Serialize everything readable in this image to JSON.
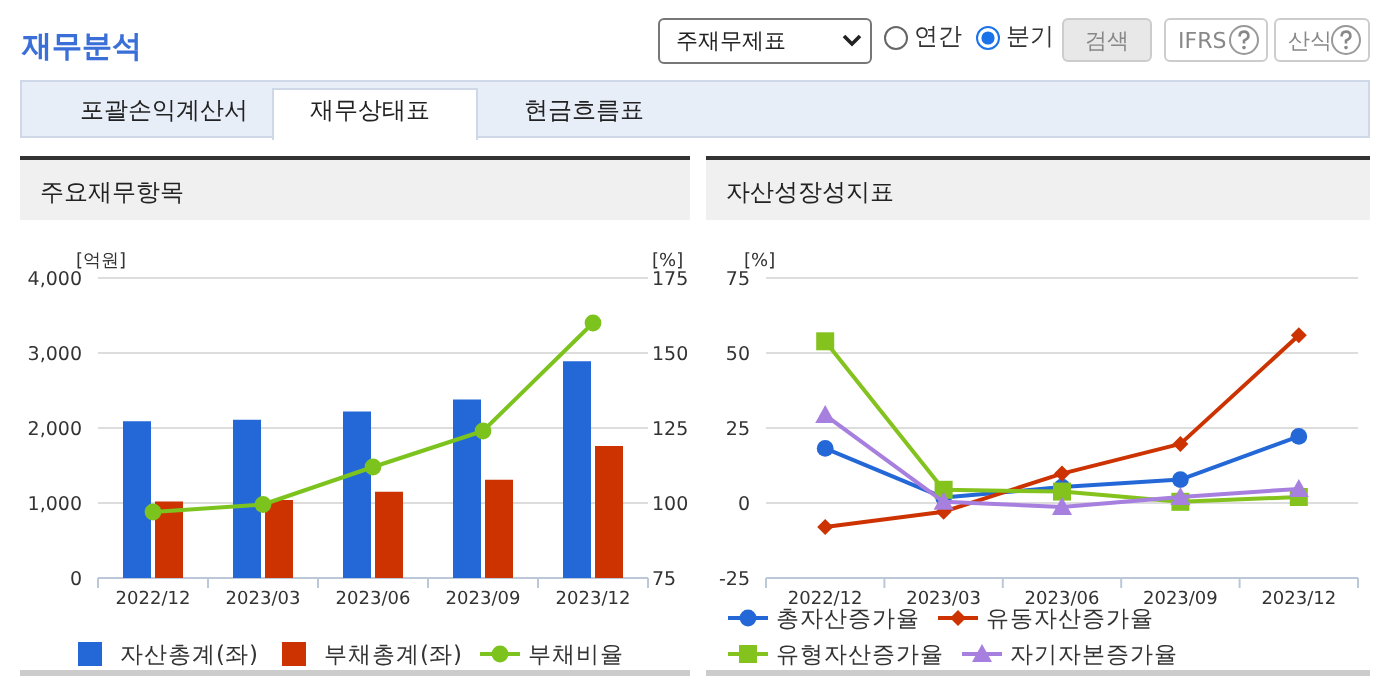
{
  "chart_data": [
    {
      "type": "bar",
      "title": "주요재무항목",
      "ylabel": "[억원]",
      "y2label": "[%]",
      "annotations": [
        "재무분석",
        "주재무제표",
        "연간",
        "분기",
        "검색",
        "IFRS",
        "산식",
        "포괄손익계산서",
        "재무상태표",
        "현금흐름표"
      ],
      "categories": [
        "2022/12",
        "2023/03",
        "2023/06",
        "2023/09",
        "2023/12"
      ],
      "series": [
        {
          "name": "자산총계(좌)",
          "color": "#2468d8",
          "values": [
            2090,
            2110,
            2220,
            2380,
            2890
          ]
        },
        {
          "name": "부채총계(좌)",
          "color": "#cc3300",
          "values": [
            1020,
            1040,
            1150,
            1310,
            1760
          ]
        },
        {
          "name": "부채비율",
          "type": "line",
          "axis": "y2",
          "marker": "circle",
          "color": "#7cc31e",
          "values": [
            97,
            99.5,
            112,
            124,
            160
          ]
        }
      ],
      "ylim": [
        0,
        4000
      ],
      "yticks": [
        0,
        {
          "value": 1000,
          "label": "1,000"
        },
        {
          "value": 2000,
          "label": "2,000"
        },
        {
          "value": 3000,
          "label": "3,000"
        },
        {
          "value": 4000,
          "label": "4,000"
        }
      ],
      "y2lim": [
        75,
        175
      ],
      "y2ticks": [
        75,
        100,
        125,
        150,
        175
      ],
      "grid": "y",
      "legend": "bottom"
    },
    {
      "type": "line",
      "title": "자산성장성지표",
      "ylabel": "[%]",
      "categories": [
        "2022/12",
        "2023/03",
        "2023/06",
        "2023/09",
        "2023/12"
      ],
      "series": [
        {
          "name": "총자산증가율",
          "marker": "circle",
          "color": "#2468d8",
          "values": [
            18.2,
            1.8,
            5.3,
            7.8,
            22.2
          ]
        },
        {
          "name": "유동자산증가율",
          "marker": "diamond",
          "color": "#cc3300",
          "values": [
            -8,
            -2.9,
            9.8,
            19.7,
            55.9
          ]
        },
        {
          "name": "유형자산증가율",
          "marker": "square",
          "color": "#84c21e",
          "values": [
            53.9,
            4.4,
            3.8,
            0.4,
            2
          ]
        },
        {
          "name": "자기자본증가율",
          "marker": "triangle",
          "color": "#a77fdf",
          "values": [
            29.3,
            0.4,
            -1.3,
            2,
            4.7
          ]
        }
      ],
      "ylim": [
        -25,
        75
      ],
      "yticks": [
        -25,
        0,
        25,
        50,
        75
      ],
      "grid": "y",
      "legend": "bottom"
    }
  ]
}
